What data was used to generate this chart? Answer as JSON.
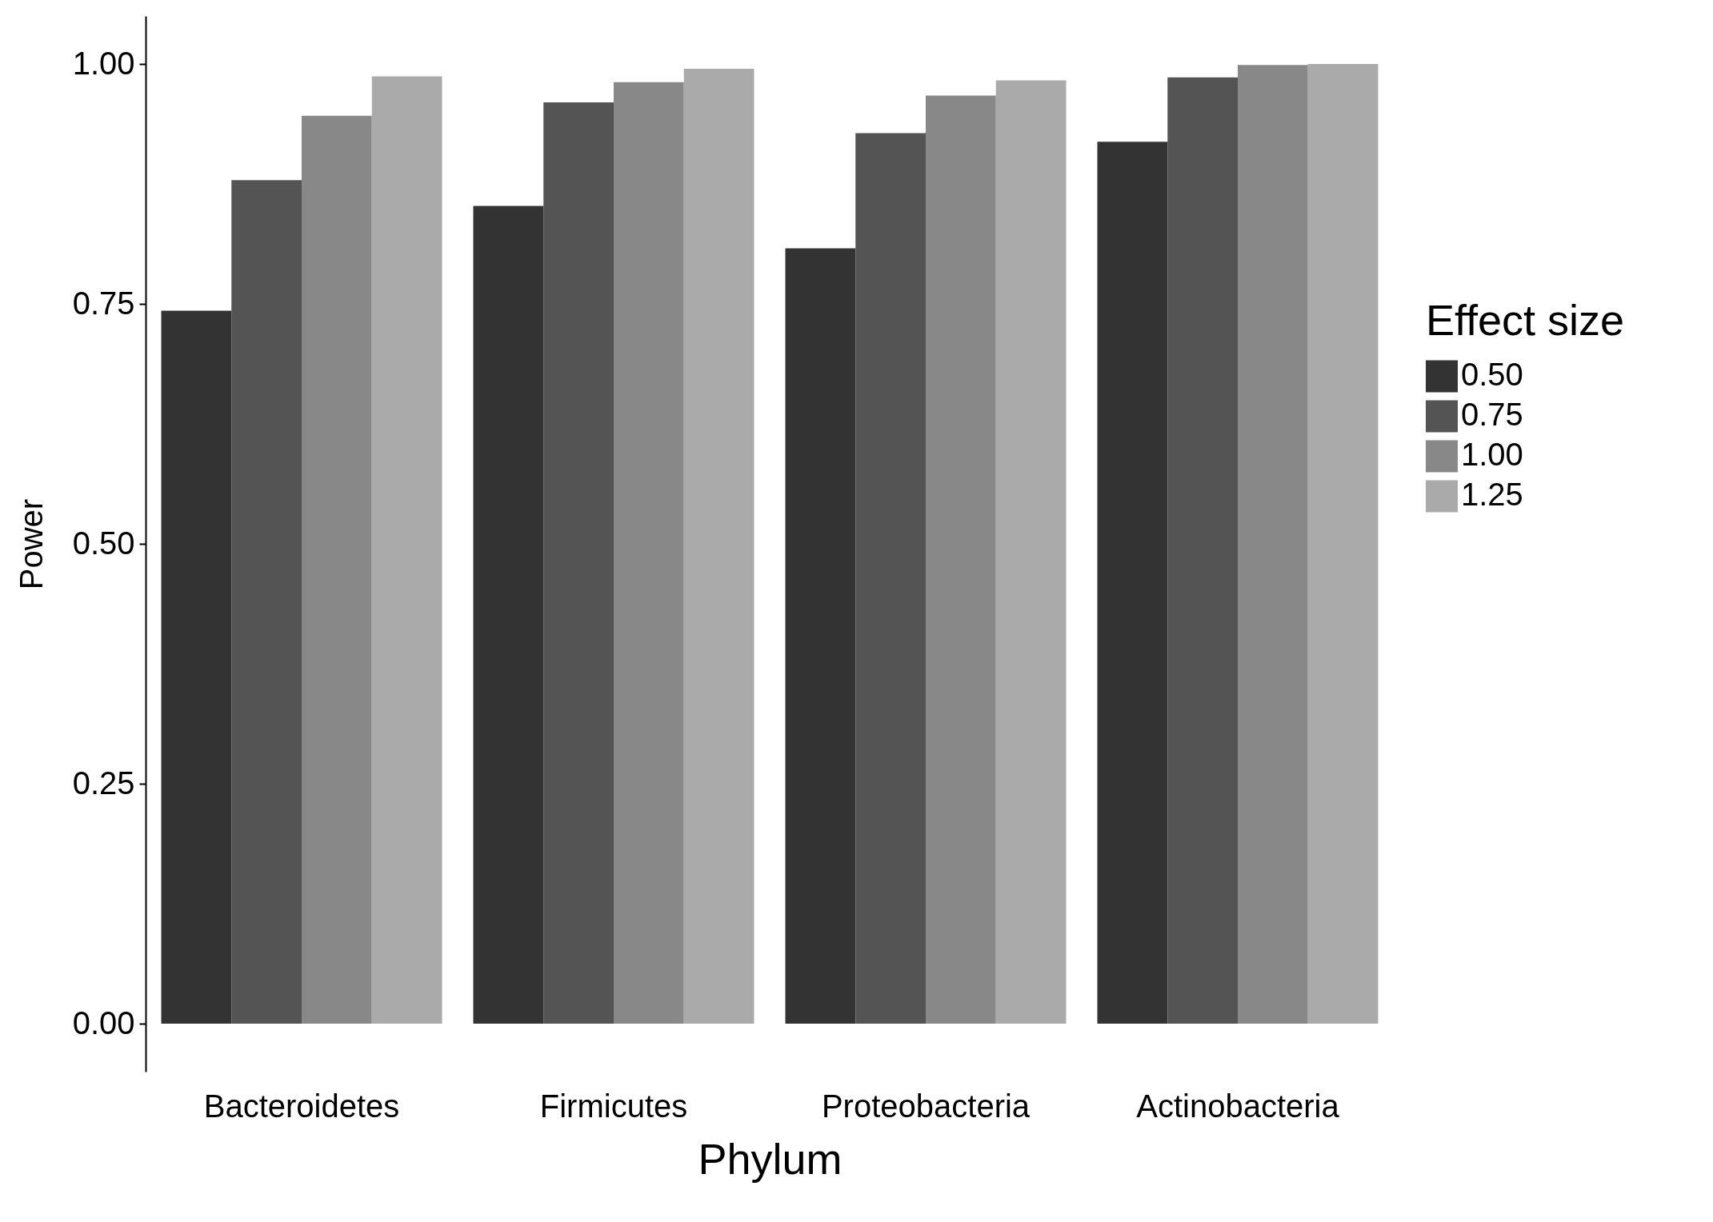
{
  "chart_data": {
    "type": "bar",
    "xlabel": "Phylum",
    "ylabel": "Power",
    "legend_title": "Effect size",
    "categories": [
      "Bacteroidetes",
      "Firmicutes",
      "Proteobacteria",
      "Actinobacteria"
    ],
    "series": [
      {
        "name": "0.50",
        "color": "#333333",
        "values": [
          0.743,
          0.852,
          0.808,
          0.919
        ]
      },
      {
        "name": "0.75",
        "color": "#545454",
        "values": [
          0.879,
          0.96,
          0.928,
          0.986
        ]
      },
      {
        "name": "1.00",
        "color": "#888888",
        "values": [
          0.946,
          0.981,
          0.967,
          0.999
        ]
      },
      {
        "name": "1.25",
        "color": "#aaaaaa",
        "values": [
          0.987,
          0.995,
          0.983,
          1.0
        ]
      }
    ],
    "ylim": [
      -0.05,
      1.05
    ],
    "yticks": [
      {
        "value": 0,
        "label": "0.00"
      },
      {
        "value": 0.25,
        "label": "0.25"
      },
      {
        "value": 0.5,
        "label": "0.50"
      },
      {
        "value": 0.75,
        "label": "0.75"
      },
      {
        "value": 1,
        "label": "1.00"
      }
    ],
    "grid": false,
    "legend": "right"
  }
}
